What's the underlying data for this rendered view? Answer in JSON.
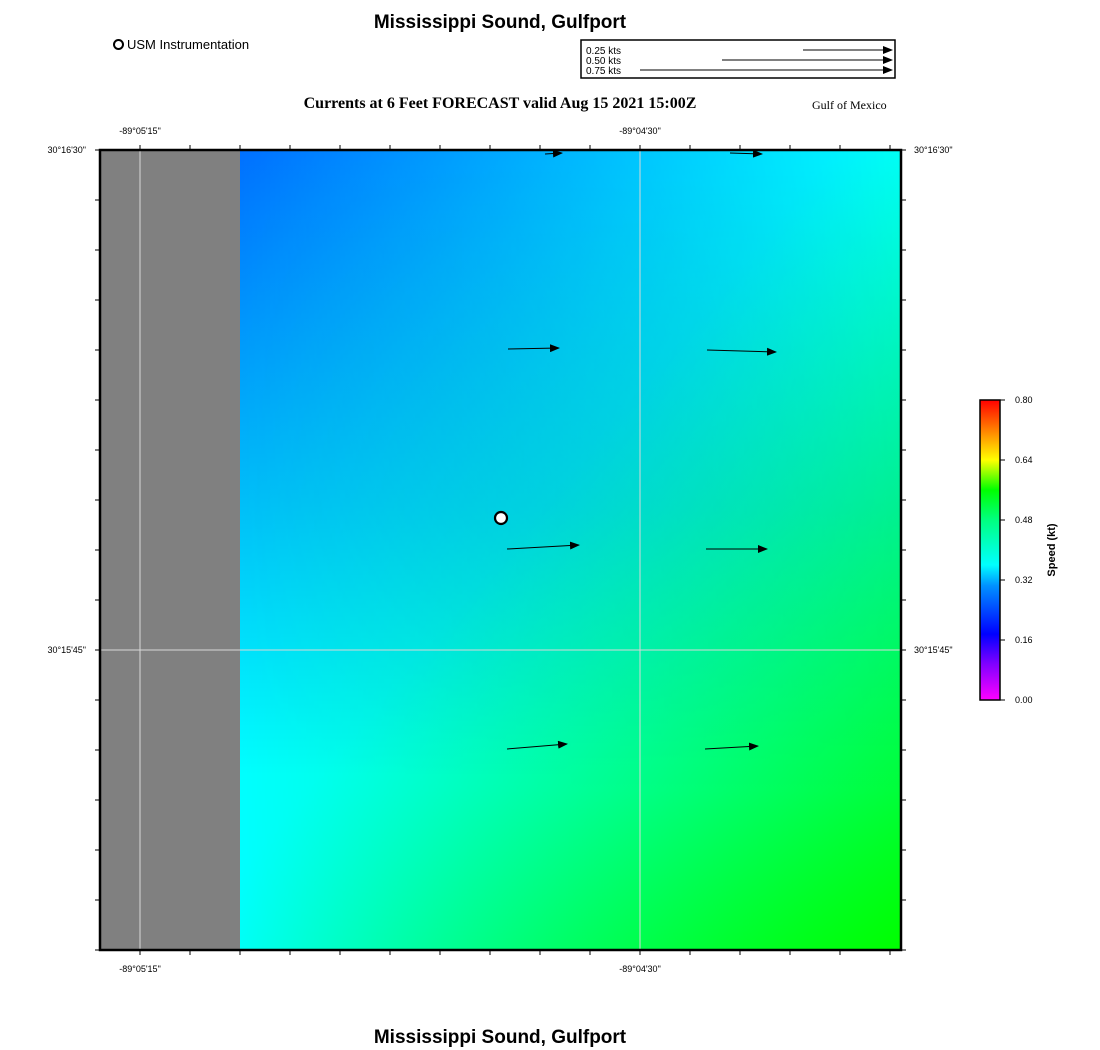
{
  "header": {
    "title": "Mississippi Sound, Gulfport",
    "forecast_title": "Currents at 6 Feet FORECAST valid Aug 15 2021 15:00Z",
    "region_label": "Gulf of Mexico"
  },
  "footer": {
    "title": "Mississippi Sound, Gulfport"
  },
  "legend": {
    "station_label": "USM Instrumentation",
    "scale_labels": [
      "0.25 kts",
      "0.50 kts",
      "0.75 kts"
    ]
  },
  "axes": {
    "x_ticks": [
      "-89°05'15\"",
      "-89°04'30\""
    ],
    "y_ticks": [
      "30°16'30\"",
      "30°15'45\""
    ]
  },
  "colorbar": {
    "label": "Speed (kt)",
    "ticks": [
      "0.80",
      "0.64",
      "0.48",
      "0.32",
      "0.16",
      "0.00"
    ],
    "range": [
      0,
      0.8
    ]
  },
  "colors": {
    "land": "#808080",
    "deep_blue": "#0070ff",
    "cyan": "#00ffff",
    "green": "#00ff00"
  }
}
